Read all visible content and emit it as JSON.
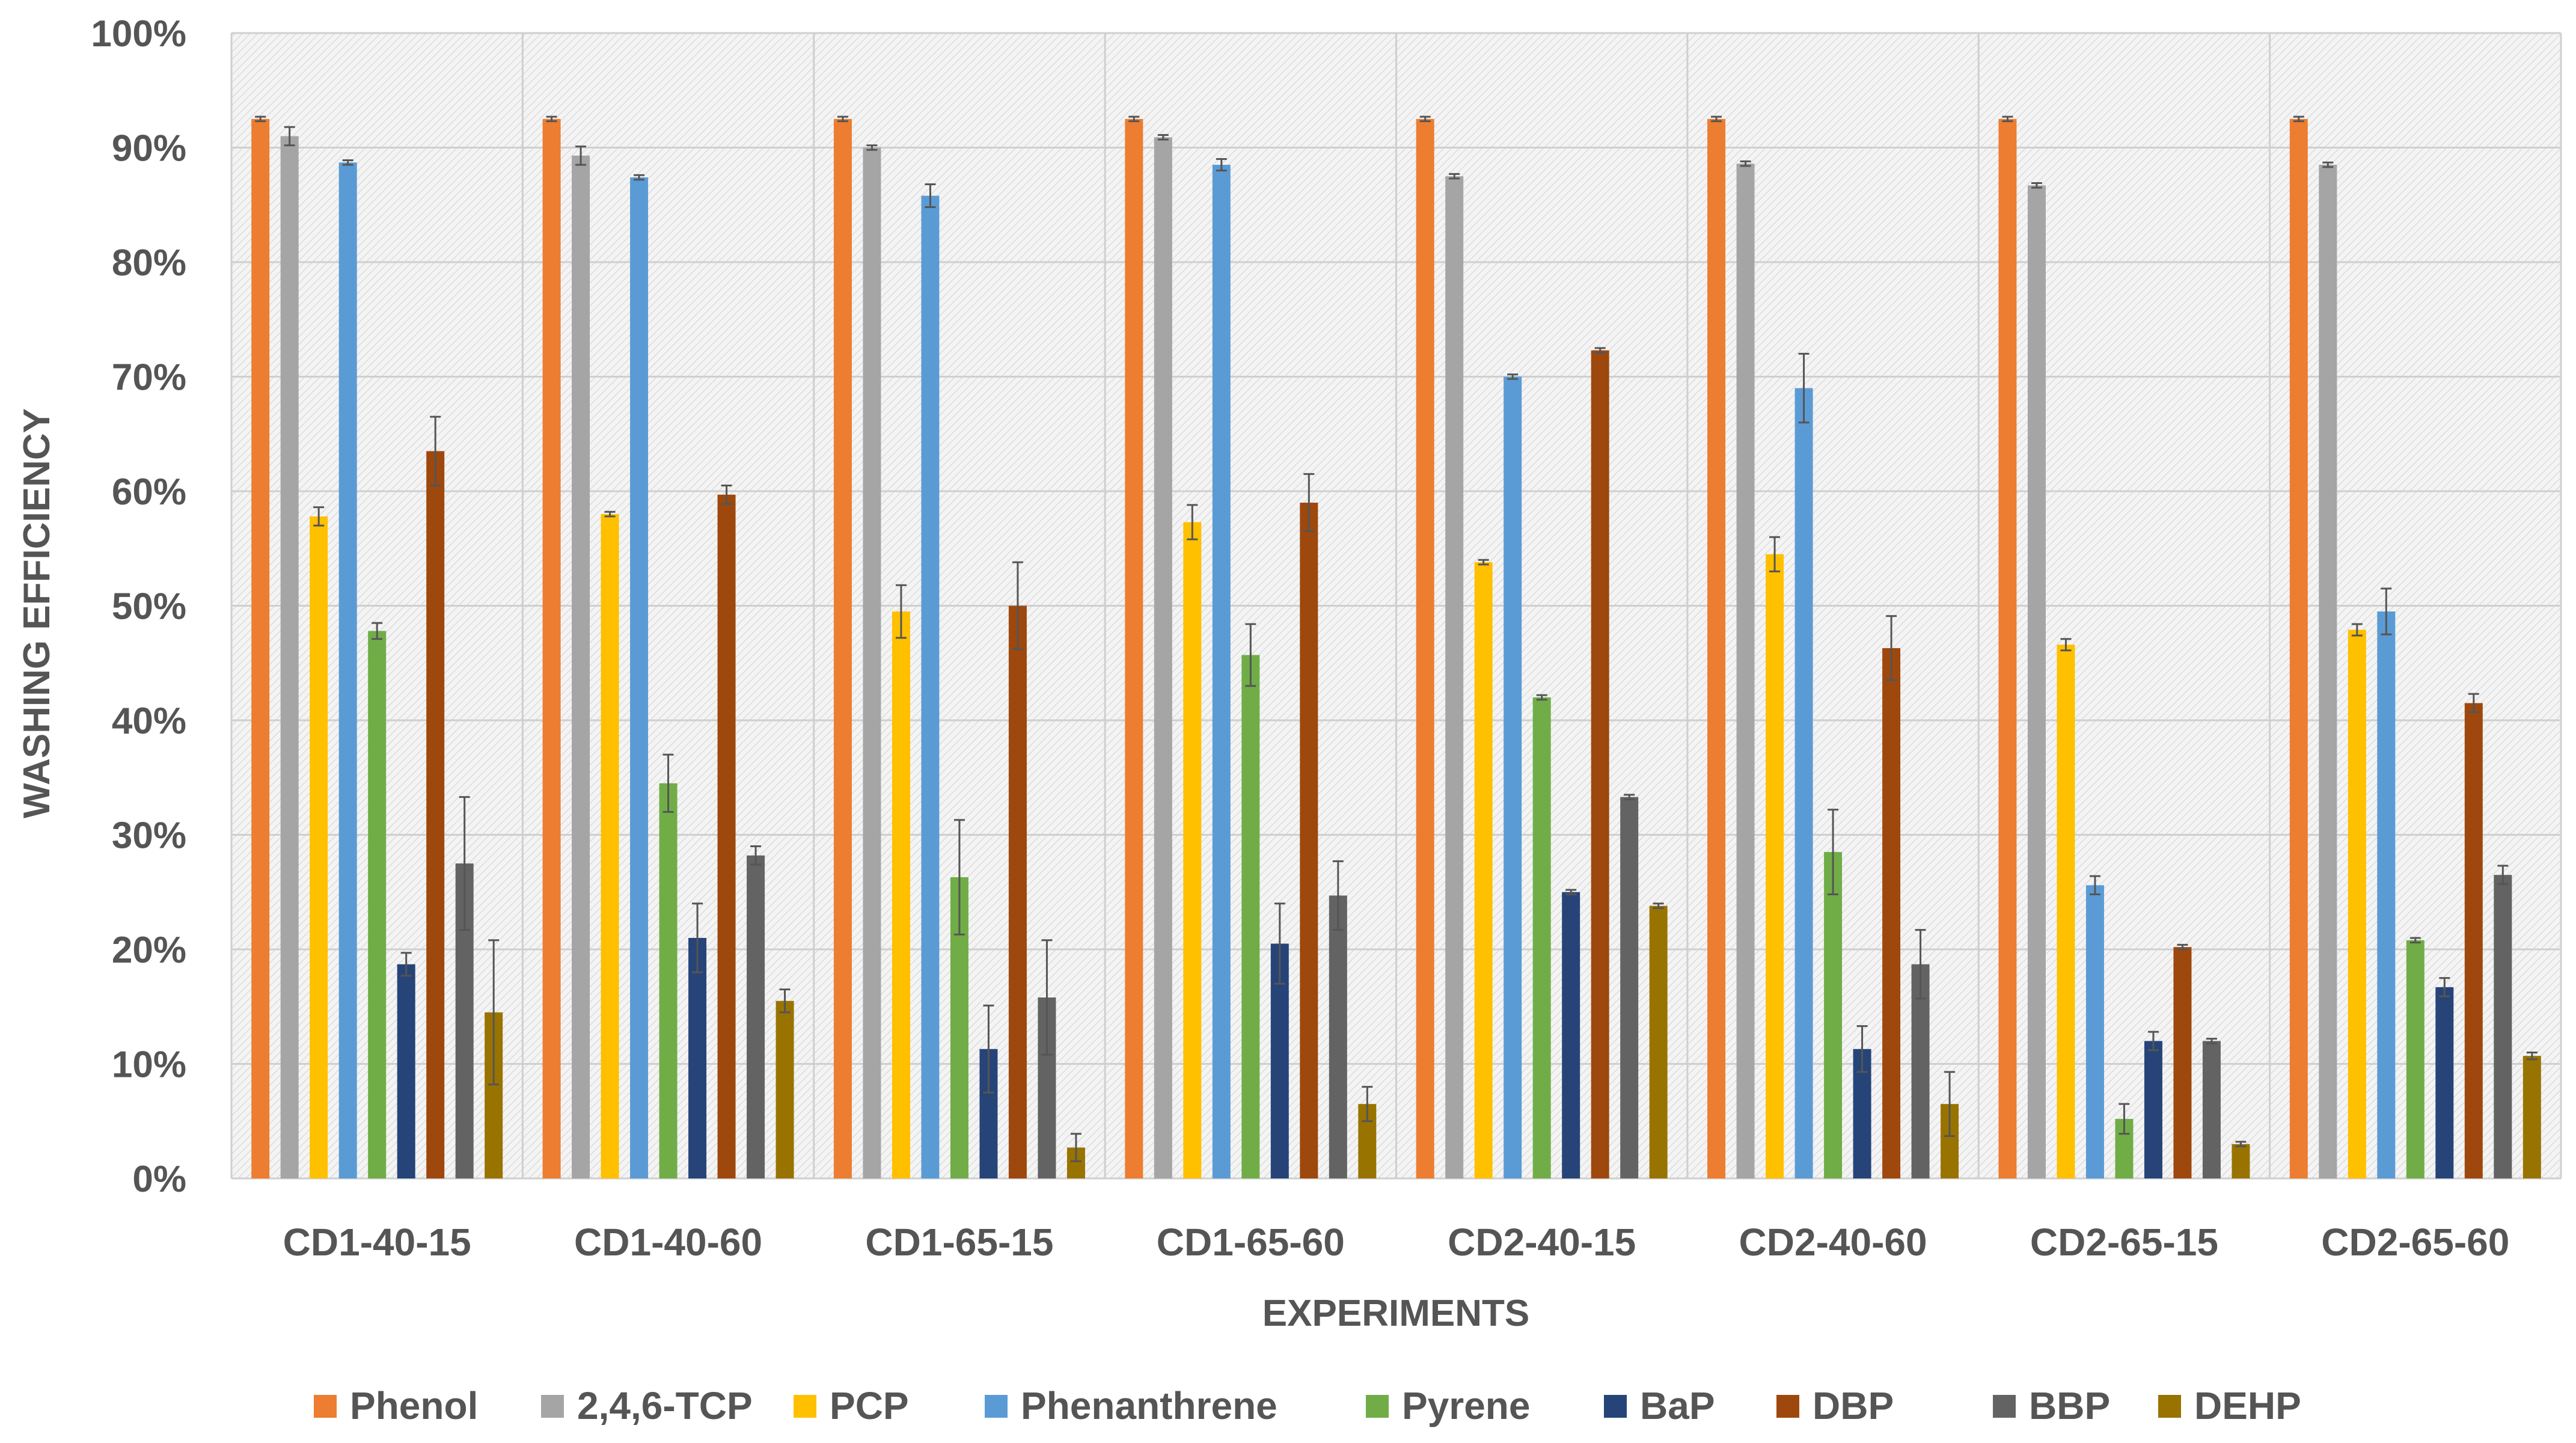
{
  "chart_data": {
    "type": "bar",
    "title": "",
    "xlabel": "EXPERIMENTS",
    "ylabel": "WASHING EFFICIENCY",
    "ylim": [
      0,
      100
    ],
    "ytick_values": [
      0,
      10,
      20,
      30,
      40,
      50,
      60,
      70,
      80,
      90,
      100
    ],
    "ytick_labels": [
      "0%",
      "10%",
      "20%",
      "30%",
      "40%",
      "50%",
      "60%",
      "70%",
      "80%",
      "90%",
      "100%"
    ],
    "grid": true,
    "legend_position": "bottom",
    "categories": [
      "CD1-40-15",
      "CD1-40-60",
      "CD1-65-15",
      "CD1-65-60",
      "CD2-40-15",
      "CD2-40-60",
      "CD2-65-15",
      "CD2-65-60"
    ],
    "series": [
      {
        "name": "Phenol",
        "color": "#ED7D31",
        "values": [
          92.5,
          92.5,
          92.5,
          92.5,
          92.5,
          92.5,
          92.5,
          92.5
        ],
        "errors": [
          0.2,
          0.2,
          0.2,
          0.2,
          0.2,
          0.2,
          0.2,
          0.2
        ]
      },
      {
        "name": "2,4,6-TCP",
        "color": "#A5A5A5",
        "values": [
          91.0,
          89.3,
          90.0,
          90.9,
          87.5,
          88.6,
          86.7,
          88.5
        ],
        "errors": [
          0.8,
          0.8,
          0.2,
          0.2,
          0.2,
          0.2,
          0.2,
          0.2
        ]
      },
      {
        "name": "PCP",
        "color": "#FFC000",
        "values": [
          57.8,
          58.0,
          49.5,
          57.3,
          53.8,
          54.5,
          46.6,
          47.9
        ],
        "errors": [
          0.8,
          0.2,
          2.3,
          1.5,
          0.2,
          1.5,
          0.5,
          0.5
        ]
      },
      {
        "name": "Phenanthrene",
        "color": "#5B9BD5",
        "values": [
          88.7,
          87.4,
          85.8,
          88.5,
          70.0,
          69.0,
          25.6,
          49.5
        ],
        "errors": [
          0.2,
          0.2,
          1.0,
          0.5,
          0.2,
          3.0,
          0.8,
          2.0
        ]
      },
      {
        "name": "Pyrene",
        "color": "#70AD47",
        "values": [
          47.8,
          34.5,
          26.3,
          45.7,
          42.0,
          28.5,
          5.2,
          20.8
        ],
        "errors": [
          0.7,
          2.5,
          5.0,
          2.7,
          0.2,
          3.7,
          1.3,
          0.2
        ]
      },
      {
        "name": "BaP",
        "color": "#264478",
        "values": [
          18.7,
          21.0,
          11.3,
          20.5,
          25.0,
          11.3,
          12.0,
          16.7
        ],
        "errors": [
          1.0,
          3.0,
          3.8,
          3.5,
          0.2,
          2.0,
          0.8,
          0.8
        ]
      },
      {
        "name": "DBP",
        "color": "#9E480E",
        "values": [
          63.5,
          59.7,
          50.0,
          59.0,
          72.3,
          46.3,
          20.2,
          41.5
        ],
        "errors": [
          3.0,
          0.8,
          3.8,
          2.5,
          0.2,
          2.8,
          0.2,
          0.8
        ]
      },
      {
        "name": "BBP",
        "color": "#636363",
        "values": [
          27.5,
          28.2,
          15.8,
          24.7,
          33.3,
          18.7,
          12.0,
          26.5
        ],
        "errors": [
          5.8,
          0.8,
          5.0,
          3.0,
          0.2,
          3.0,
          0.2,
          0.8
        ]
      },
      {
        "name": "DEHP",
        "color": "#997300",
        "values": [
          14.5,
          15.5,
          2.7,
          6.5,
          23.8,
          6.5,
          3.0,
          10.7
        ],
        "errors": [
          6.3,
          1.0,
          1.2,
          1.5,
          0.2,
          2.8,
          0.2,
          0.3
        ]
      }
    ]
  }
}
